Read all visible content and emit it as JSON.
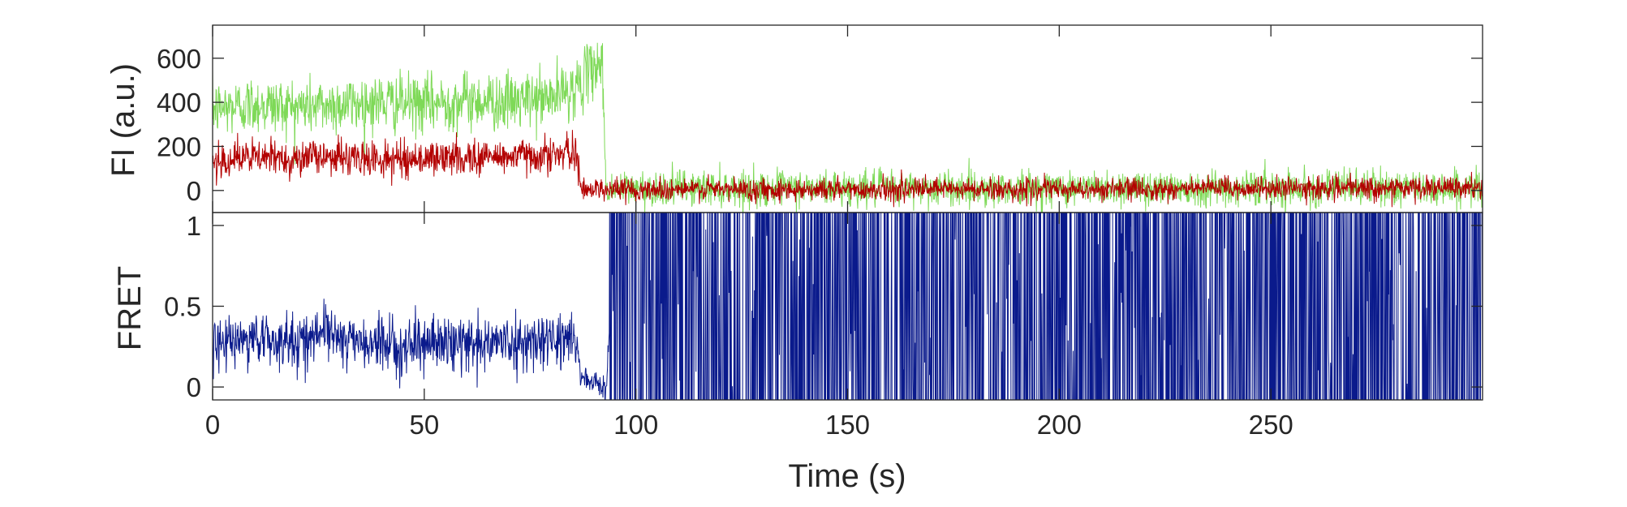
{
  "chart_data": [
    {
      "type": "line",
      "panel": "top",
      "title": "",
      "xlabel": "",
      "ylabel": "FI (a.u.)",
      "xlim": [
        0,
        300
      ],
      "ylim": [
        -100,
        750
      ],
      "xticks": [
        0,
        50,
        100,
        150,
        200,
        250
      ],
      "yticks": [
        0,
        200,
        400,
        600
      ],
      "ytick_labels": [
        "0",
        "200",
        "400",
        "600"
      ],
      "show_x_tick_labels": false,
      "grid": false,
      "series": [
        {
          "color": "#7ed957",
          "description_points": {
            "x": [
              0,
              10,
              20,
              30,
              40,
              50,
              60,
              70,
              80,
              86,
              90,
              92,
              93,
              100,
              150,
              200,
              250,
              300
            ],
            "y": [
              370,
              390,
              380,
              390,
              400,
              390,
              410,
              400,
              420,
              470,
              560,
              590,
              0,
              10,
              10,
              10,
              15,
              10
            ]
          },
          "noise_sd_before_drop": 65,
          "noise_sd_after_drop": 40
        },
        {
          "color": "#b30000",
          "description_points": {
            "x": [
              0,
              10,
              20,
              28,
              30,
              40,
              50,
              60,
              70,
              80,
              86,
              87,
              100,
              150,
              200,
              250,
              300
            ],
            "y": [
              140,
              150,
              145,
              160,
              150,
              140,
              145,
              150,
              155,
              165,
              165,
              10,
              5,
              5,
              5,
              10,
              10
            ]
          },
          "noise_sd_before_drop": 40,
          "noise_sd_after_drop": 25
        }
      ]
    },
    {
      "type": "line",
      "panel": "bottom",
      "title": "",
      "xlabel": "Time (s)",
      "ylabel": "FRET",
      "xlim": [
        0,
        300
      ],
      "ylim": [
        -0.08,
        1.08
      ],
      "xticks": [
        0,
        50,
        100,
        150,
        200,
        250
      ],
      "xtick_labels": [
        "0",
        "50",
        "100",
        "150",
        "200",
        "250"
      ],
      "yticks": [
        0,
        0.5,
        1
      ],
      "ytick_labels": [
        "0",
        "0.5",
        "1"
      ],
      "grid": false,
      "series": [
        {
          "color": "#0a1a8c",
          "description_points": {
            "x": [
              0,
              10,
              20,
              28,
              30,
              40,
              50,
              60,
              70,
              80,
              86,
              87,
              93,
              94,
              150,
              200,
              250,
              300
            ],
            "y": [
              0.26,
              0.3,
              0.28,
              0.36,
              0.3,
              0.25,
              0.27,
              0.28,
              0.27,
              0.3,
              0.3,
              0.05,
              0.0,
              0.5,
              0.5,
              0.5,
              0.5,
              0.5
            ]
          },
          "noise_sd_before_drop": 0.08,
          "behavior_after_94s": "saturating rapid fluctuation spanning 0 to 1"
        }
      ]
    }
  ]
}
